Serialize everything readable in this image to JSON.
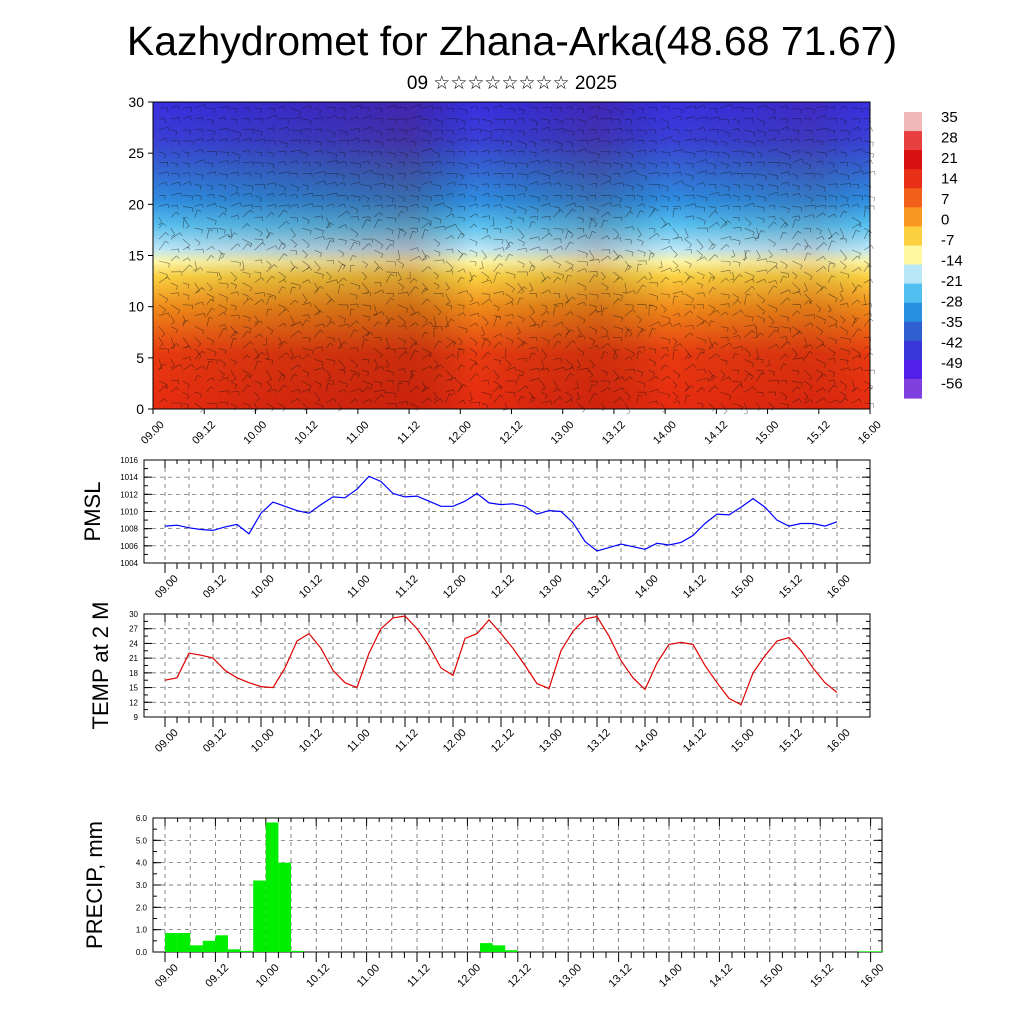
{
  "title": "Kazhydromet for Zhana-Arka(48.68 71.67)",
  "subtitle": "09 ☆☆☆☆☆☆☆☆ 2025",
  "time_ticks": [
    "09.00",
    "09.12",
    "10.00",
    "10.12",
    "11.00",
    "11.12",
    "12.00",
    "12.12",
    "13.00",
    "13.12",
    "14.00",
    "14.12",
    "15.00",
    "15.12",
    "16.00"
  ],
  "colors": {
    "pmsl_line": "#0000ff",
    "temp_line": "#e00000",
    "precip_bar": "#00ee00"
  },
  "chart_data": [
    {
      "type": "heatmap",
      "name": "cross-section",
      "ylim": [
        0,
        30
      ],
      "y_ticks": [
        "0",
        "5",
        "10",
        "15",
        "20",
        "25",
        "30"
      ],
      "colorbar_labels": [
        "35",
        "28",
        "21",
        "14",
        "7",
        "0",
        "-7",
        "-14",
        "-21",
        "-28",
        "-35",
        "-42",
        "-49",
        "-56"
      ],
      "colorbar_colors": [
        "#f0b8b8",
        "#e84040",
        "#d81010",
        "#e83018",
        "#f06018",
        "#f89820",
        "#fcd040",
        "#fff8a0",
        "#b8e8f8",
        "#50c0f0",
        "#2890e0",
        "#3060d0",
        "#3838d8",
        "#5020e8",
        "#8040e0"
      ],
      "overlay": "wind barbs"
    },
    {
      "type": "line",
      "ylabel": "PMSL",
      "ylim": [
        1004,
        1016
      ],
      "y_ticks": [
        "1004",
        "1006",
        "1008",
        "1010",
        "1012",
        "1014",
        "1016"
      ],
      "x": [
        0,
        1,
        2,
        3,
        4,
        5,
        6,
        7,
        8,
        9,
        10,
        11,
        12,
        13,
        14,
        15,
        16,
        17,
        18,
        19,
        20,
        21,
        22,
        23,
        24,
        25,
        26,
        27,
        28,
        29,
        30,
        31,
        32,
        33,
        34,
        35,
        36,
        37,
        38,
        39,
        40,
        41,
        42,
        43,
        44,
        45,
        46,
        47,
        48,
        49,
        50,
        51,
        52,
        53,
        54,
        55,
        56
      ],
      "values": [
        1008.3,
        1008.4,
        1008.1,
        1007.9,
        1007.8,
        1008.2,
        1008.5,
        1007.4,
        1009.8,
        1011.1,
        1010.6,
        1010.1,
        1009.8,
        1010.8,
        1011.7,
        1011.6,
        1012.6,
        1014.1,
        1013.5,
        1012.1,
        1011.7,
        1011.8,
        1011.2,
        1010.6,
        1010.6,
        1011.2,
        1012.1,
        1011.0,
        1010.8,
        1010.9,
        1010.6,
        1009.7,
        1010.1,
        1010.0,
        1008.7,
        1006.5,
        1005.4,
        1005.8,
        1006.2,
        1005.9,
        1005.6,
        1006.3,
        1006.1,
        1006.4,
        1007.2,
        1008.6,
        1009.7,
        1009.6,
        1010.5,
        1011.5,
        1010.5,
        1009.0,
        1008.3,
        1008.6,
        1008.6,
        1008.3,
        1008.8
      ]
    },
    {
      "type": "line",
      "ylabel": "TEMP at 2 M",
      "ylim": [
        9,
        30
      ],
      "y_ticks": [
        "9",
        "12",
        "15",
        "18",
        "21",
        "24",
        "27",
        "30"
      ],
      "x": [
        0,
        1,
        2,
        3,
        4,
        5,
        6,
        7,
        8,
        9,
        10,
        11,
        12,
        13,
        14,
        15,
        16,
        17,
        18,
        19,
        20,
        21,
        22,
        23,
        24,
        25,
        26,
        27,
        28,
        29,
        30,
        31,
        32,
        33,
        34,
        35,
        36,
        37,
        38,
        39,
        40,
        41,
        42,
        43,
        44,
        45,
        46,
        47,
        48,
        49,
        50,
        51,
        52,
        53,
        54,
        55,
        56
      ],
      "values": [
        16.5,
        17.0,
        22.0,
        21.6,
        21.0,
        18.5,
        17.0,
        16.0,
        15.2,
        15.0,
        19.0,
        24.5,
        26.0,
        23.0,
        18.5,
        16.0,
        15.0,
        22.0,
        27.0,
        29.2,
        29.6,
        27.0,
        23.5,
        19.0,
        17.5,
        25.0,
        26.0,
        28.8,
        26.0,
        23.0,
        19.5,
        15.8,
        14.8,
        22.5,
        26.5,
        29.0,
        29.5,
        25.5,
        20.5,
        17.0,
        14.6,
        20.0,
        23.8,
        24.2,
        23.8,
        19.5,
        16.0,
        12.8,
        11.5,
        18.0,
        21.5,
        24.5,
        25.2,
        22.5,
        19.0,
        16.0,
        14.0
      ]
    },
    {
      "type": "bar",
      "ylabel": "PRECIP, mm",
      "ylim": [
        0,
        6
      ],
      "y_ticks": [
        "0.0",
        "1.0",
        "2.0",
        "3.0",
        "4.0",
        "5.0",
        "6.0"
      ],
      "x": [
        0,
        1,
        2,
        3,
        4,
        5,
        6,
        7,
        8,
        9,
        10,
        11,
        12,
        13,
        14,
        15,
        16,
        17,
        18,
        19,
        20,
        21,
        22,
        23,
        24,
        25,
        26,
        27,
        28,
        29,
        30,
        31,
        32,
        33,
        34,
        35,
        36,
        37,
        38,
        39,
        40,
        41,
        42,
        43,
        44,
        45,
        46,
        47,
        48,
        49,
        50,
        51,
        52,
        53,
        54,
        55,
        56
      ],
      "values": [
        0.85,
        0.85,
        0.3,
        0.5,
        0.75,
        0.12,
        0.05,
        3.2,
        5.8,
        4.0,
        0.05,
        0,
        0,
        0,
        0,
        0,
        0,
        0,
        0,
        0,
        0,
        0,
        0,
        0,
        0,
        0.4,
        0.3,
        0.08,
        0,
        0,
        0,
        0,
        0,
        0,
        0,
        0,
        0,
        0,
        0,
        0,
        0,
        0,
        0,
        0,
        0,
        0,
        0,
        0,
        0,
        0,
        0,
        0,
        0,
        0,
        0,
        0.03,
        0.03
      ]
    }
  ]
}
